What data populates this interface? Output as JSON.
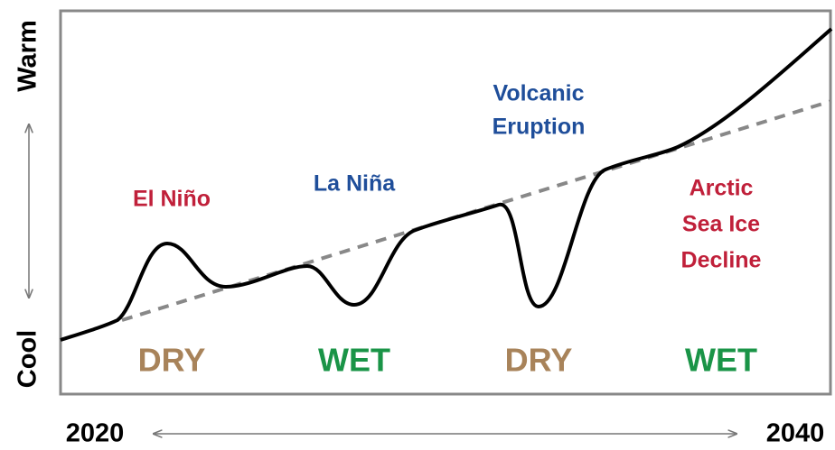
{
  "axes": {
    "y_top": "Warm",
    "y_bottom": "Cool",
    "x_start": "2020",
    "x_end": "2040"
  },
  "events": [
    {
      "lines": [
        "El Niño"
      ]
    },
    {
      "lines": [
        "La Niña"
      ]
    },
    {
      "lines": [
        "Volcanic",
        "Eruption"
      ]
    },
    {
      "lines": [
        "Arctic",
        "Sea Ice",
        "Decline"
      ]
    }
  ],
  "phases": [
    "DRY",
    "WET",
    "DRY",
    "WET"
  ]
}
